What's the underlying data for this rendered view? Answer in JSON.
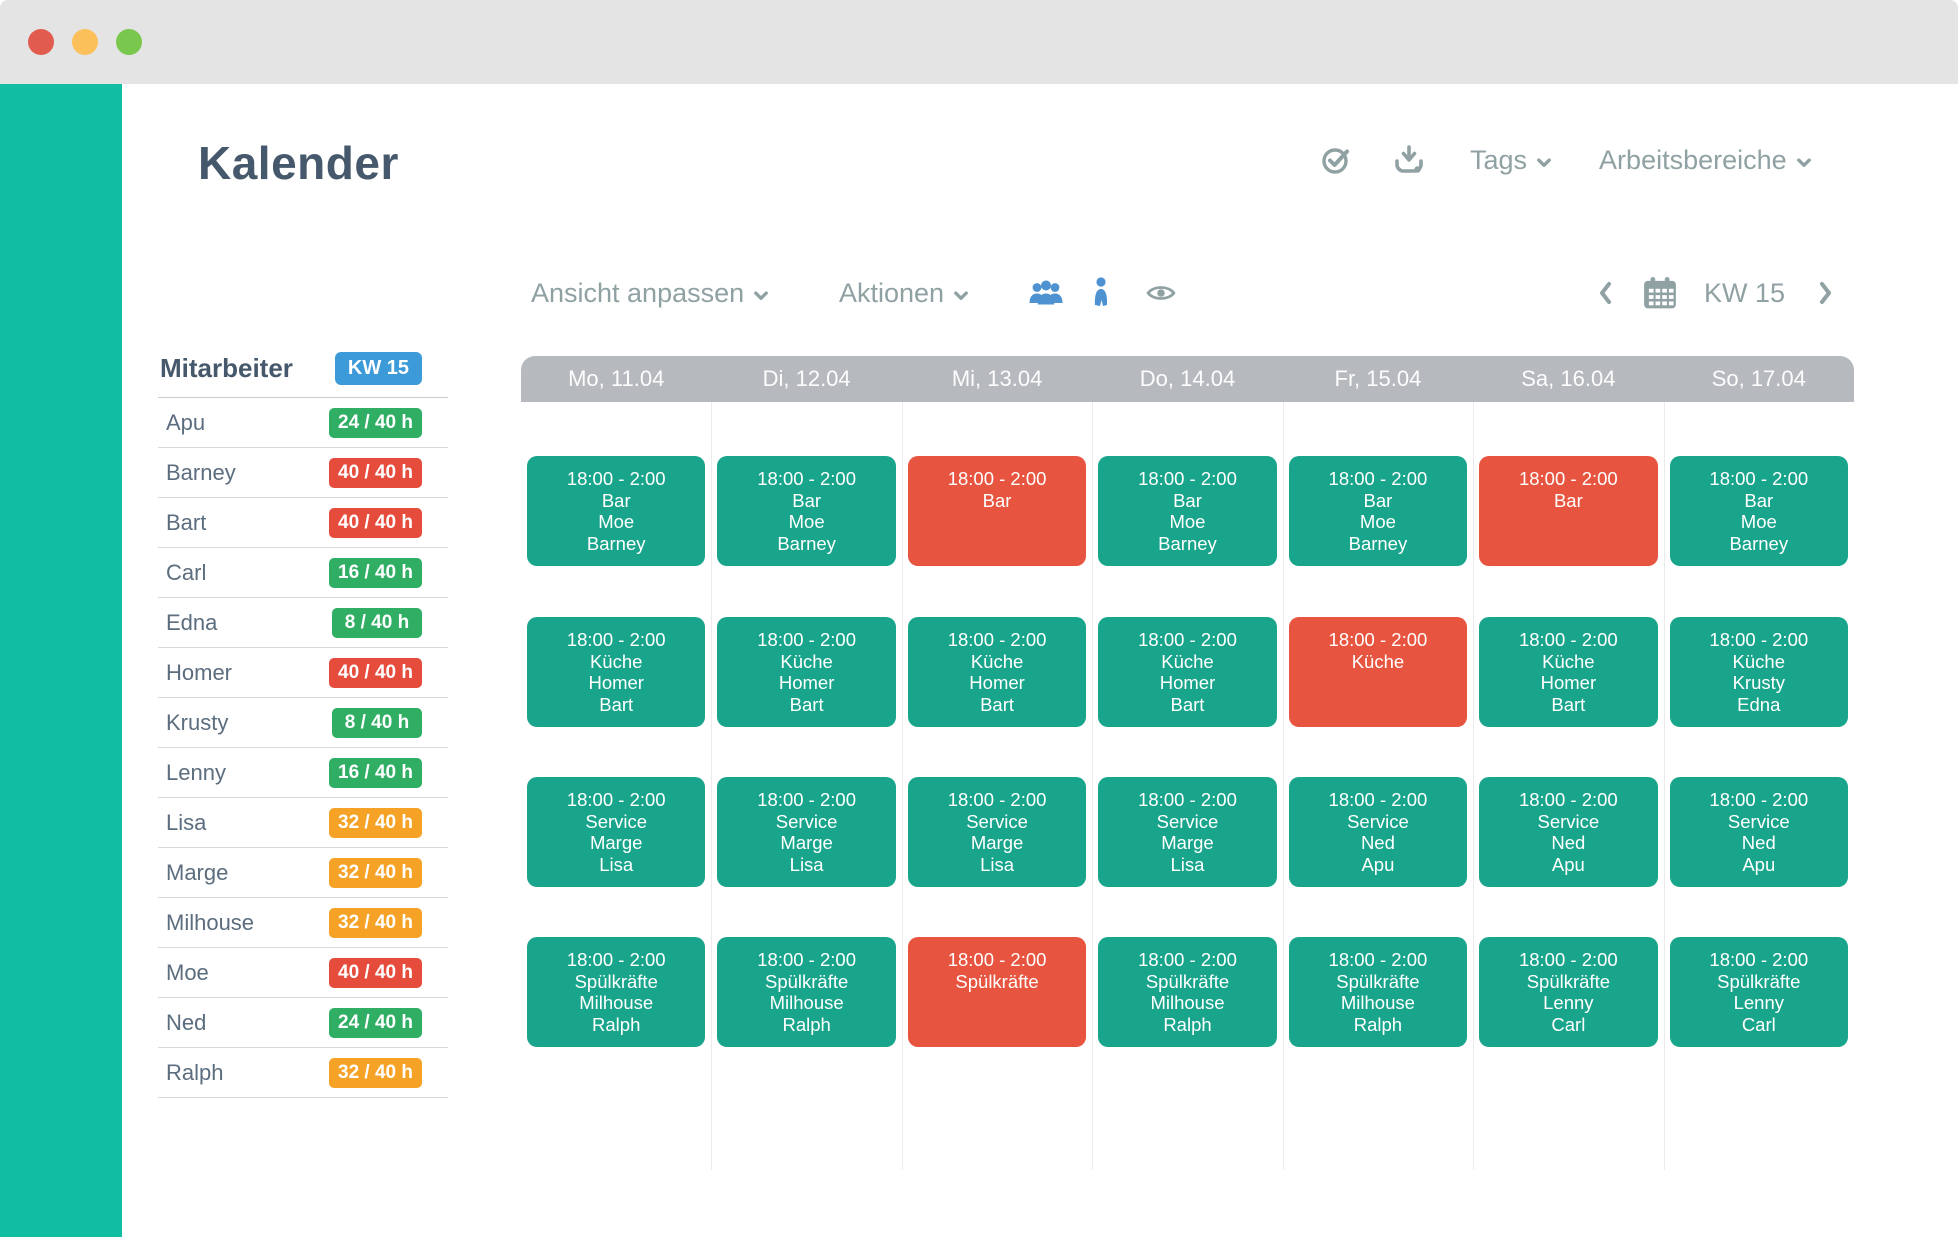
{
  "window": {
    "traffic_lights": [
      {
        "name": "close",
        "color": "#e15b4f"
      },
      {
        "name": "minimize",
        "color": "#fbc05a"
      },
      {
        "name": "zoom",
        "color": "#79c84d"
      }
    ]
  },
  "header": {
    "title": "Kalender",
    "icons": [
      "check-circle-icon",
      "download-icon"
    ],
    "tags_menu": "Tags",
    "workspaces_menu": "Arbeitsbereiche"
  },
  "toolbar": {
    "view_menu": "Ansicht anpassen",
    "actions_menu": "Aktionen",
    "icons": [
      "people-group-icon",
      "person-icon",
      "eye-icon"
    ],
    "week_nav": {
      "calendar_icon": "calendar-icon",
      "week_label": "KW 15"
    }
  },
  "employees_panel": {
    "title": "Mitarbeiter",
    "week_badge": "KW 15",
    "rows": [
      {
        "name": "Apu",
        "hours": "24 / 40 h",
        "status": "green"
      },
      {
        "name": "Barney",
        "hours": "40 / 40 h",
        "status": "red"
      },
      {
        "name": "Bart",
        "hours": "40 / 40 h",
        "status": "red"
      },
      {
        "name": "Carl",
        "hours": "16 / 40 h",
        "status": "green"
      },
      {
        "name": "Edna",
        "hours": "8 / 40 h",
        "status": "green"
      },
      {
        "name": "Homer",
        "hours": "40 / 40 h",
        "status": "red"
      },
      {
        "name": "Krusty",
        "hours": "8 / 40 h",
        "status": "green"
      },
      {
        "name": "Lenny",
        "hours": "16 / 40 h",
        "status": "green"
      },
      {
        "name": "Lisa",
        "hours": "32 / 40 h",
        "status": "orange"
      },
      {
        "name": "Marge",
        "hours": "32 / 40 h",
        "status": "orange"
      },
      {
        "name": "Milhouse",
        "hours": "32 / 40 h",
        "status": "orange"
      },
      {
        "name": "Moe",
        "hours": "40 / 40 h",
        "status": "red"
      },
      {
        "name": "Ned",
        "hours": "24 / 40 h",
        "status": "green"
      },
      {
        "name": "Ralph",
        "hours": "32 / 40 h",
        "status": "orange"
      }
    ]
  },
  "calendar": {
    "days": [
      "Mo, 11.04",
      "Di, 12.04",
      "Mi, 13.04",
      "Do, 14.04",
      "Fr, 15.04",
      "Sa, 16.04",
      "So, 17.04"
    ],
    "rows": [
      {
        "name": "bar",
        "area": "Bar",
        "cells": [
          {
            "time": "18:00 - 2:00",
            "area": "Bar",
            "people": [
              "Moe",
              "Barney"
            ],
            "status": "filled"
          },
          {
            "time": "18:00 - 2:00",
            "area": "Bar",
            "people": [
              "Moe",
              "Barney"
            ],
            "status": "filled"
          },
          {
            "time": "18:00 - 2:00",
            "area": "Bar",
            "people": [],
            "status": "open"
          },
          {
            "time": "18:00 - 2:00",
            "area": "Bar",
            "people": [
              "Moe",
              "Barney"
            ],
            "status": "filled"
          },
          {
            "time": "18:00 - 2:00",
            "area": "Bar",
            "people": [
              "Moe",
              "Barney"
            ],
            "status": "filled"
          },
          {
            "time": "18:00 - 2:00",
            "area": "Bar",
            "people": [],
            "status": "open"
          },
          {
            "time": "18:00 - 2:00",
            "area": "Bar",
            "people": [
              "Moe",
              "Barney"
            ],
            "status": "filled"
          }
        ]
      },
      {
        "name": "kueche",
        "area": "Küche",
        "cells": [
          {
            "time": "18:00 - 2:00",
            "area": "Küche",
            "people": [
              "Homer",
              "Bart"
            ],
            "status": "filled"
          },
          {
            "time": "18:00 - 2:00",
            "area": "Küche",
            "people": [
              "Homer",
              "Bart"
            ],
            "status": "filled"
          },
          {
            "time": "18:00 - 2:00",
            "area": "Küche",
            "people": [
              "Homer",
              "Bart"
            ],
            "status": "filled"
          },
          {
            "time": "18:00 - 2:00",
            "area": "Küche",
            "people": [
              "Homer",
              "Bart"
            ],
            "status": "filled"
          },
          {
            "time": "18:00 - 2:00",
            "area": "Küche",
            "people": [],
            "status": "open"
          },
          {
            "time": "18:00 - 2:00",
            "area": "Küche",
            "people": [
              "Homer",
              "Bart"
            ],
            "status": "filled"
          },
          {
            "time": "18:00 - 2:00",
            "area": "Küche",
            "people": [
              "Krusty",
              "Edna"
            ],
            "status": "filled"
          }
        ]
      },
      {
        "name": "service",
        "area": "Service",
        "cells": [
          {
            "time": "18:00 - 2:00",
            "area": "Service",
            "people": [
              "Marge",
              "Lisa"
            ],
            "status": "filled"
          },
          {
            "time": "18:00 - 2:00",
            "area": "Service",
            "people": [
              "Marge",
              "Lisa"
            ],
            "status": "filled"
          },
          {
            "time": "18:00 - 2:00",
            "area": "Service",
            "people": [
              "Marge",
              "Lisa"
            ],
            "status": "filled"
          },
          {
            "time": "18:00 - 2:00",
            "area": "Service",
            "people": [
              "Marge",
              "Lisa"
            ],
            "status": "filled"
          },
          {
            "time": "18:00 - 2:00",
            "area": "Service",
            "people": [
              "Ned",
              "Apu"
            ],
            "status": "filled"
          },
          {
            "time": "18:00 - 2:00",
            "area": "Service",
            "people": [
              "Ned",
              "Apu"
            ],
            "status": "filled"
          },
          {
            "time": "18:00 - 2:00",
            "area": "Service",
            "people": [
              "Ned",
              "Apu"
            ],
            "status": "filled"
          }
        ]
      },
      {
        "name": "spuelkraefte",
        "area": "Spülkräfte",
        "cells": [
          {
            "time": "18:00 - 2:00",
            "area": "Spülkräfte",
            "people": [
              "Milhouse",
              "Ralph"
            ],
            "status": "filled"
          },
          {
            "time": "18:00 - 2:00",
            "area": "Spülkräfte",
            "people": [
              "Milhouse",
              "Ralph"
            ],
            "status": "filled"
          },
          {
            "time": "18:00 - 2:00",
            "area": "Spülkräfte",
            "people": [],
            "status": "open"
          },
          {
            "time": "18:00 - 2:00",
            "area": "Spülkräfte",
            "people": [
              "Milhouse",
              "Ralph"
            ],
            "status": "filled"
          },
          {
            "time": "18:00 - 2:00",
            "area": "Spülkräfte",
            "people": [
              "Milhouse",
              "Ralph"
            ],
            "status": "filled"
          },
          {
            "time": "18:00 - 2:00",
            "area": "Spülkräfte",
            "people": [
              "Lenny",
              "Carl"
            ],
            "status": "filled"
          },
          {
            "time": "18:00 - 2:00",
            "area": "Spülkräfte",
            "people": [
              "Lenny",
              "Carl"
            ],
            "status": "filled"
          }
        ]
      }
    ]
  },
  "colors": {
    "sidebar_teal": "#11bda3",
    "titlebar_gray": "#e4e4e4",
    "title_text": "#45586c",
    "muted_text": "#90a1a3",
    "employee_text": "#5b6d7e",
    "icon_blue": "#4e92d2",
    "day_header_bg": "#b6b9bd",
    "grid_line": "#ebebeb",
    "row_divider": "#d5d9db",
    "shift_green": "#19a58b",
    "shift_red": "#e7543f",
    "badge_green": "#2fae64",
    "badge_red": "#e64c3c",
    "badge_orange": "#f5a226",
    "badge_blue": "#3d9ad8"
  }
}
